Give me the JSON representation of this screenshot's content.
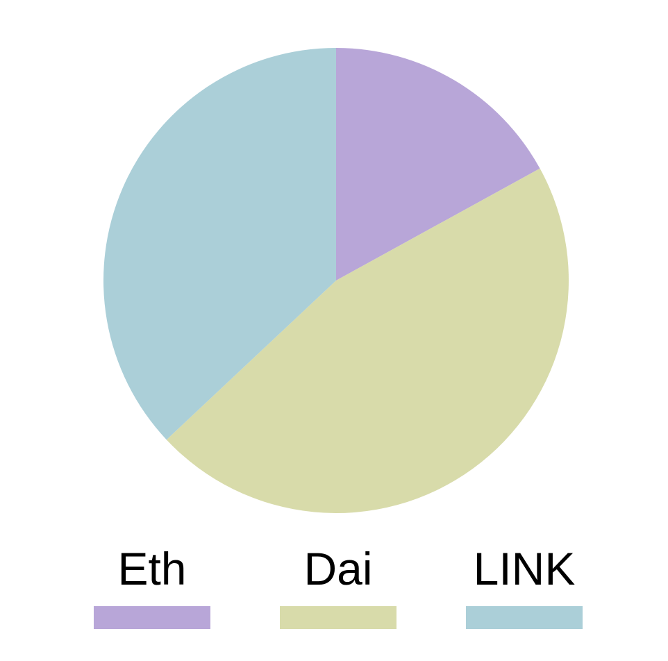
{
  "chart_data": {
    "type": "pie",
    "categories": [
      "Eth",
      "Dai",
      "LINK"
    ],
    "values": [
      17,
      46,
      37
    ],
    "colors": [
      "#b8a6d8",
      "#d8dbaa",
      "#abcfd8"
    ],
    "start_angle_deg": 0,
    "direction": "clockwise",
    "legend": "bottom",
    "title": ""
  }
}
